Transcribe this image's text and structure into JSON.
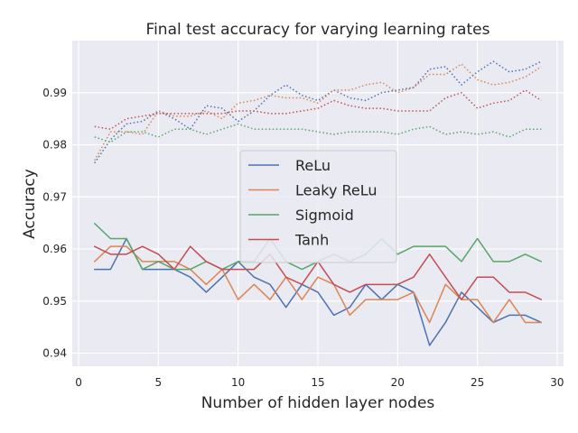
{
  "chart_data": {
    "type": "line",
    "title": "Final test accuracy for varying learning rates",
    "xlabel": "Number of hidden layer nodes",
    "ylabel": "Accuracy",
    "xlim": [
      -0.4,
      30.4
    ],
    "ylim": [
      0.9375,
      1.0
    ],
    "xticks": [
      0,
      5,
      10,
      15,
      20,
      25,
      30
    ],
    "yticks": [
      0.94,
      0.95,
      0.96,
      0.97,
      0.98,
      0.99
    ],
    "ytick_labels": [
      "0.94",
      "0.95",
      "0.96",
      "0.97",
      "0.98",
      "0.99"
    ],
    "grid": true,
    "background": "#eaeaf2",
    "legend_position": "center",
    "x": [
      1,
      2,
      3,
      4,
      5,
      6,
      7,
      8,
      9,
      10,
      11,
      12,
      13,
      14,
      15,
      16,
      17,
      18,
      19,
      20,
      21,
      22,
      23,
      24,
      25,
      26,
      27,
      28,
      29
    ],
    "series": [
      {
        "name": "ReLu",
        "color": "#4c72b0",
        "style": "solid",
        "values": [
          0.9561,
          0.9561,
          0.962,
          0.9561,
          0.9561,
          0.9561,
          0.9546,
          0.9517,
          0.9546,
          0.9576,
          0.9546,
          0.9532,
          0.9488,
          0.9532,
          0.9517,
          0.9473,
          0.9488,
          0.9532,
          0.9503,
          0.9532,
          0.9517,
          0.9415,
          0.9459,
          0.9517,
          0.9488,
          0.9459,
          0.9473,
          0.9473,
          0.9459
        ]
      },
      {
        "name": "Leaky ReLu",
        "color": "#dd8452",
        "style": "solid",
        "values": [
          0.9576,
          0.9605,
          0.9605,
          0.9576,
          0.9576,
          0.9576,
          0.9561,
          0.9532,
          0.9561,
          0.9503,
          0.9532,
          0.9503,
          0.9546,
          0.9503,
          0.9546,
          0.9532,
          0.9473,
          0.9503,
          0.9503,
          0.9503,
          0.9517,
          0.9459,
          0.9532,
          0.9503,
          0.9503,
          0.9459,
          0.9503,
          0.9459,
          0.9459
        ]
      },
      {
        "name": "Sigmoid",
        "color": "#55a868",
        "style": "solid",
        "values": [
          0.9649,
          0.962,
          0.962,
          0.9561,
          0.9576,
          0.9561,
          0.9561,
          0.9576,
          0.9561,
          0.9576,
          0.9576,
          0.962,
          0.9576,
          0.9561,
          0.9576,
          0.959,
          0.9576,
          0.959,
          0.962,
          0.959,
          0.9605,
          0.9605,
          0.9605,
          0.9576,
          0.962,
          0.9576,
          0.9576,
          0.959,
          0.9576
        ]
      },
      {
        "name": "Tanh",
        "color": "#c44e52",
        "style": "solid",
        "values": [
          0.9605,
          0.959,
          0.959,
          0.9605,
          0.959,
          0.9561,
          0.9605,
          0.9576,
          0.9561,
          0.9561,
          0.9561,
          0.959,
          0.9546,
          0.9532,
          0.9576,
          0.9532,
          0.9517,
          0.9532,
          0.9532,
          0.9532,
          0.9546,
          0.959,
          0.9546,
          0.9503,
          0.9546,
          0.9546,
          0.9517,
          0.9517,
          0.9503
        ]
      },
      {
        "name": "",
        "color": "#4c72b0",
        "style": "dotted",
        "values": [
          0.9765,
          0.981,
          0.984,
          0.9845,
          0.9865,
          0.985,
          0.983,
          0.9875,
          0.987,
          0.9845,
          0.9865,
          0.9895,
          0.9915,
          0.9895,
          0.9885,
          0.9905,
          0.989,
          0.9885,
          0.99,
          0.9905,
          0.991,
          0.9945,
          0.995,
          0.9915,
          0.994,
          0.996,
          0.994,
          0.9945,
          0.996
        ]
      },
      {
        "name": "",
        "color": "#dd8452",
        "style": "dotted",
        "values": [
          0.977,
          0.9825,
          0.9825,
          0.982,
          0.9865,
          0.9855,
          0.9855,
          0.9865,
          0.985,
          0.988,
          0.9885,
          0.9895,
          0.989,
          0.989,
          0.988,
          0.9905,
          0.9905,
          0.9915,
          0.992,
          0.99,
          0.991,
          0.9935,
          0.9935,
          0.9955,
          0.9925,
          0.9915,
          0.992,
          0.993,
          0.995
        ]
      },
      {
        "name": "",
        "color": "#55a868",
        "style": "dotted",
        "values": [
          0.9815,
          0.9805,
          0.9825,
          0.9825,
          0.9815,
          0.983,
          0.983,
          0.982,
          0.983,
          0.984,
          0.983,
          0.983,
          0.983,
          0.983,
          0.9825,
          0.982,
          0.9825,
          0.9825,
          0.9825,
          0.982,
          0.983,
          0.9835,
          0.982,
          0.9825,
          0.982,
          0.9825,
          0.9815,
          0.983,
          0.983
        ]
      },
      {
        "name": "",
        "color": "#c44e52",
        "style": "dotted",
        "values": [
          0.9835,
          0.983,
          0.985,
          0.9855,
          0.986,
          0.986,
          0.986,
          0.986,
          0.986,
          0.9865,
          0.9865,
          0.986,
          0.986,
          0.9865,
          0.987,
          0.9885,
          0.9875,
          0.987,
          0.987,
          0.9865,
          0.9865,
          0.9865,
          0.989,
          0.99,
          0.987,
          0.988,
          0.9885,
          0.9905,
          0.9885
        ]
      }
    ]
  }
}
